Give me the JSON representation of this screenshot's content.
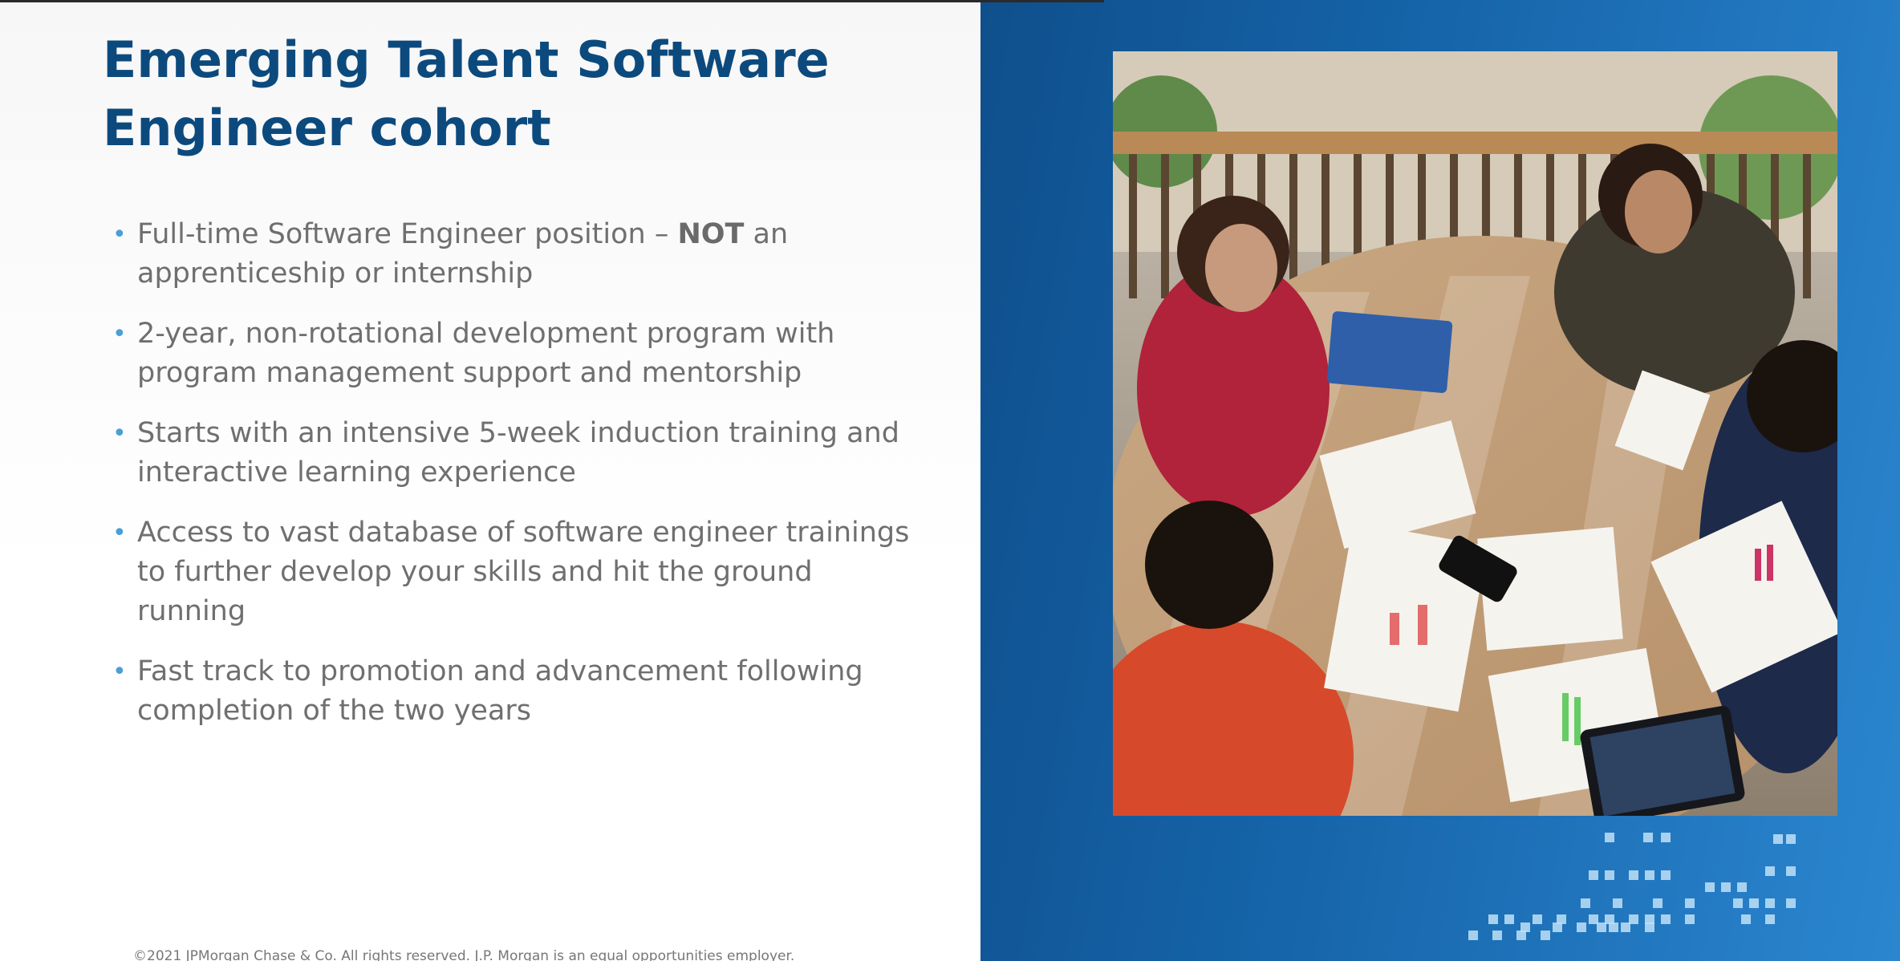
{
  "slide": {
    "title_line1": "Emerging Talent Software",
    "title_line2": "Engineer cohort",
    "bullets": [
      {
        "line1_pre": "Full-time Software Engineer position – ",
        "line1_bold": "NOT",
        "line1_post": " an",
        "line2": "apprenticeship or internship"
      },
      {
        "line1": "2-year, non-rotational development program with",
        "line2": "program management support and mentorship"
      },
      {
        "line1": "Starts with an intensive 5-week induction training and",
        "line2": "interactive learning experience"
      },
      {
        "line1": "Access to vast database of software engineer trainings",
        "line2": "to further develop your skills and hit the ground",
        "line3": "running"
      },
      {
        "line1": "Fast track to promotion and advancement following",
        "line2": "completion of the two years"
      }
    ],
    "bullet_glyph": "•",
    "footer": "©2021 JPMorgan Chase & Co. All rights reserved. J.P. Morgan is an equal opportunities employer.",
    "photo_alt": "Four women collaborating around a table with printed charts and a tablet"
  },
  "colors": {
    "title": "#0c4a7e",
    "body_text": "#6f6f6f",
    "bullet": "#4a9fd6",
    "right_panel": "#1563a8",
    "pixel_accent": "#bfe0f7"
  },
  "icons": {
    "bullet": "bullet-dot-icon"
  }
}
